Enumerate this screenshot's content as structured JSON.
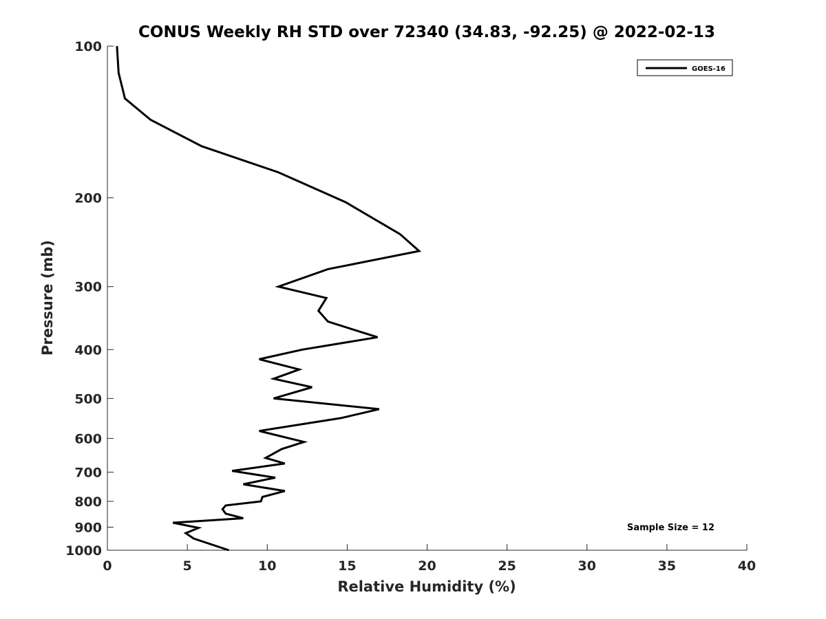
{
  "chart_data": {
    "type": "line",
    "title": "CONUS Weekly RH STD over 72340 (34.83, -92.25) @ 2022-02-13",
    "xlabel": "Relative Humidity (%)",
    "ylabel": "Pressure (mb)",
    "xlim": [
      0,
      40
    ],
    "ylim": [
      100,
      1000
    ],
    "y_scale": "log",
    "y_reversed": true,
    "xticks": [
      0,
      5,
      10,
      15,
      20,
      25,
      30,
      35,
      40
    ],
    "yticks": [
      100,
      200,
      300,
      400,
      500,
      600,
      700,
      800,
      900,
      1000
    ],
    "grid": false,
    "legend_position": "top-right",
    "series": [
      {
        "name": "GOES-16",
        "color": "#000000",
        "x": [
          0.6,
          0.7,
          1.1,
          2.7,
          5.9,
          10.7,
          14.9,
          18.3,
          19.5,
          13.8,
          10.7,
          13.7,
          13.2,
          13.8,
          16.9,
          12.2,
          9.5,
          12.0,
          10.4,
          12.8,
          10.4,
          17.0,
          14.6,
          9.5,
          12.3,
          10.9,
          9.9,
          11.1,
          7.8,
          10.5,
          8.5,
          11.1,
          9.7,
          9.6,
          7.4,
          7.2,
          7.4,
          8.5,
          4.1,
          5.7,
          4.9,
          5.4,
          7.6
        ],
        "y": [
          100,
          113,
          127,
          140,
          158,
          178,
          204,
          236,
          255,
          277,
          300,
          316,
          335,
          352,
          378,
          400,
          418,
          438,
          457,
          475,
          500,
          525,
          547,
          580,
          610,
          630,
          656,
          673,
          696,
          718,
          740,
          763,
          784,
          800,
          815,
          829,
          846,
          864,
          882,
          903,
          925,
          948,
          1000
        ]
      }
    ],
    "annotation": "Sample Size = 12"
  }
}
